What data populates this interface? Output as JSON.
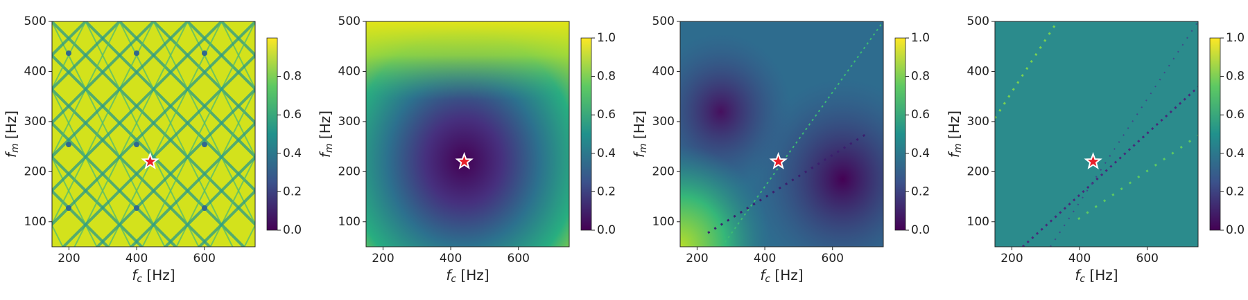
{
  "chart_data": [
    {
      "type": "heatmap",
      "xlabel": {
        "symbol": "f",
        "sub": "c",
        "unit": "[Hz]"
      },
      "ylabel": {
        "symbol": "f",
        "sub": "m",
        "unit": "[Hz]"
      },
      "xlim": [
        150,
        750
      ],
      "ylim": [
        50,
        500
      ],
      "xticks": [
        200,
        400,
        600
      ],
      "yticks": [
        100,
        200,
        300,
        400,
        500
      ],
      "colormap": "viridis",
      "clim": [
        0,
        1
      ],
      "cticks": [
        {
          "value": 0,
          "label": "0.0"
        },
        {
          "value": 0.2,
          "label": "0.2"
        },
        {
          "value": 0.4,
          "label": "0.4"
        },
        {
          "value": 0.6,
          "label": "0.6"
        },
        {
          "value": 0.8,
          "label": "0.8"
        }
      ],
      "marker": {
        "x": 440,
        "y": 220,
        "color": "#e8202a"
      }
    },
    {
      "type": "heatmap",
      "xlabel": {
        "symbol": "f",
        "sub": "c",
        "unit": "[Hz]"
      },
      "ylabel": {
        "symbol": "f",
        "sub": "m",
        "unit": "[Hz]"
      },
      "xlim": [
        150,
        750
      ],
      "ylim": [
        50,
        500
      ],
      "xticks": [
        200,
        400,
        600
      ],
      "yticks": [
        100,
        200,
        300,
        400,
        500
      ],
      "colormap": "viridis",
      "clim": [
        0,
        1
      ],
      "cticks": [
        {
          "value": 0,
          "label": "0.0"
        },
        {
          "value": 0.2,
          "label": "0.2"
        },
        {
          "value": 0.4,
          "label": "0.4"
        },
        {
          "value": 0.6,
          "label": "0.6"
        },
        {
          "value": 0.8,
          "label": "0.8"
        },
        {
          "value": 1,
          "label": "1.0"
        }
      ],
      "marker": {
        "x": 440,
        "y": 220,
        "color": "#e8202a"
      }
    },
    {
      "type": "heatmap",
      "xlabel": {
        "symbol": "f",
        "sub": "c",
        "unit": "[Hz]"
      },
      "ylabel": {
        "symbol": "f",
        "sub": "m",
        "unit": "[Hz]"
      },
      "xlim": [
        150,
        750
      ],
      "ylim": [
        50,
        500
      ],
      "xticks": [
        200,
        400,
        600
      ],
      "yticks": [
        100,
        200,
        300,
        400,
        500
      ],
      "colormap": "viridis",
      "clim": [
        0,
        1
      ],
      "cticks": [
        {
          "value": 0,
          "label": "0.0"
        },
        {
          "value": 0.2,
          "label": "0.2"
        },
        {
          "value": 0.4,
          "label": "0.4"
        },
        {
          "value": 0.6,
          "label": "0.6"
        },
        {
          "value": 0.8,
          "label": "0.8"
        },
        {
          "value": 1,
          "label": "1.0"
        }
      ],
      "marker": {
        "x": 440,
        "y": 220,
        "color": "#e8202a"
      }
    },
    {
      "type": "heatmap",
      "xlabel": {
        "symbol": "f",
        "sub": "c",
        "unit": "[Hz]"
      },
      "ylabel": {
        "symbol": "f",
        "sub": "m",
        "unit": "[Hz]"
      },
      "xlim": [
        150,
        750
      ],
      "ylim": [
        50,
        500
      ],
      "xticks": [
        200,
        400,
        600
      ],
      "yticks": [
        100,
        200,
        300,
        400,
        500
      ],
      "colormap": "viridis",
      "clim": [
        0,
        1
      ],
      "cticks": [
        {
          "value": 0,
          "label": "0.0"
        },
        {
          "value": 0.2,
          "label": "0.2"
        },
        {
          "value": 0.4,
          "label": "0.4"
        },
        {
          "value": 0.6,
          "label": "0.6"
        },
        {
          "value": 0.8,
          "label": "0.8"
        },
        {
          "value": 1,
          "label": "1.0"
        }
      ],
      "marker": {
        "x": 440,
        "y": 220,
        "color": "#e8202a"
      }
    }
  ]
}
